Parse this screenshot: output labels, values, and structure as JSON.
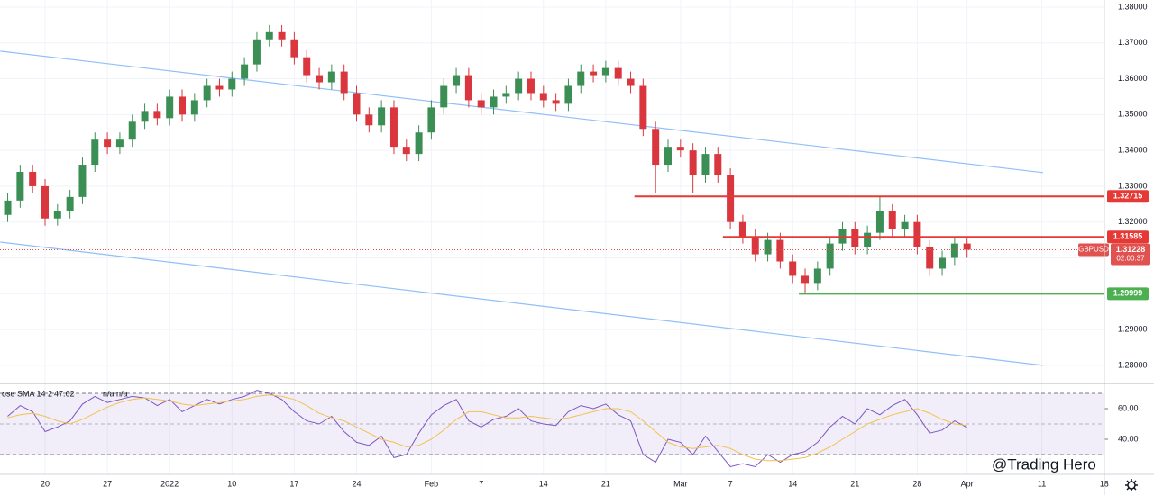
{
  "chart_data": {
    "type": "candlestick",
    "symbol": "GBPUSD",
    "categories": [
      null,
      null,
      null,
      "20",
      null,
      null,
      null,
      null,
      "27",
      null,
      null,
      null,
      null,
      "2022",
      null,
      null,
      null,
      null,
      "10",
      null,
      null,
      null,
      null,
      "17",
      null,
      null,
      null,
      null,
      "24",
      null,
      null,
      null,
      null,
      null,
      "Feb",
      null,
      null,
      null,
      "7",
      null,
      null,
      null,
      null,
      "14",
      null,
      null,
      null,
      null,
      "21",
      null,
      null,
      null,
      null,
      null,
      "Mar",
      null,
      null,
      null,
      "7",
      null,
      null,
      null,
      null,
      "14",
      null,
      null,
      null,
      null,
      "21",
      null,
      null,
      null,
      null,
      "28",
      null,
      null,
      null,
      "Apr",
      null,
      null,
      null,
      null,
      null,
      "11",
      null,
      null,
      null,
      null,
      "18"
    ],
    "open": [
      1.322,
      1.326,
      1.334,
      1.33,
      1.321,
      1.323,
      1.327,
      1.336,
      1.343,
      1.341,
      1.343,
      1.348,
      1.351,
      1.349,
      1.355,
      1.35,
      1.354,
      1.358,
      1.357,
      1.36,
      1.364,
      1.371,
      1.373,
      1.371,
      1.366,
      1.361,
      1.359,
      1.362,
      1.356,
      1.35,
      1.347,
      1.352,
      1.341,
      1.339,
      1.345,
      1.352,
      1.358,
      1.361,
      1.354,
      1.352,
      1.355,
      1.356,
      1.36,
      1.356,
      1.354,
      1.353,
      1.358,
      1.362,
      1.361,
      1.363,
      1.36,
      1.358,
      1.346,
      1.336,
      1.341,
      1.34,
      1.333,
      1.339,
      1.333,
      1.32,
      1.316,
      1.311,
      1.315,
      1.309,
      1.305,
      1.303,
      1.307,
      1.314,
      1.318,
      1.313,
      1.317,
      1.323,
      1.318,
      1.32,
      1.313,
      1.307,
      1.31,
      1.314,
      null,
      null,
      null,
      null,
      null,
      null,
      null,
      null,
      null,
      null,
      null
    ],
    "high": [
      1.328,
      1.336,
      1.336,
      1.332,
      1.325,
      1.329,
      1.338,
      1.345,
      1.345,
      1.345,
      1.35,
      1.353,
      1.353,
      1.357,
      1.357,
      1.356,
      1.36,
      1.36,
      1.362,
      1.366,
      1.373,
      1.375,
      1.375,
      1.373,
      1.368,
      1.363,
      1.364,
      1.364,
      1.358,
      1.352,
      1.354,
      1.354,
      1.343,
      1.347,
      1.354,
      1.36,
      1.363,
      1.363,
      1.356,
      1.357,
      1.358,
      1.362,
      1.362,
      1.358,
      1.356,
      1.36,
      1.364,
      1.364,
      1.365,
      1.365,
      1.362,
      1.36,
      1.348,
      1.343,
      1.343,
      1.342,
      1.341,
      1.341,
      1.335,
      1.322,
      1.318,
      1.317,
      1.317,
      1.311,
      1.307,
      1.309,
      1.316,
      1.32,
      1.32,
      1.319,
      1.327,
      1.325,
      1.322,
      1.322,
      1.315,
      1.312,
      1.316,
      1.316,
      null,
      null,
      null,
      null,
      null,
      null,
      null,
      null,
      null,
      null,
      null
    ],
    "low": [
      1.32,
      1.324,
      1.328,
      1.319,
      1.319,
      1.321,
      1.325,
      1.334,
      1.339,
      1.339,
      1.341,
      1.346,
      1.347,
      1.347,
      1.348,
      1.348,
      1.352,
      1.355,
      1.355,
      1.358,
      1.362,
      1.369,
      1.369,
      1.364,
      1.359,
      1.357,
      1.357,
      1.354,
      1.348,
      1.345,
      1.345,
      1.339,
      1.337,
      1.337,
      1.343,
      1.35,
      1.356,
      1.352,
      1.35,
      1.35,
      1.353,
      1.354,
      1.354,
      1.352,
      1.351,
      1.351,
      1.356,
      1.359,
      1.359,
      1.358,
      1.356,
      1.344,
      1.328,
      1.334,
      1.338,
      1.328,
      1.331,
      1.331,
      1.318,
      1.314,
      1.309,
      1.309,
      1.307,
      1.303,
      1.3,
      1.301,
      1.305,
      1.312,
      1.311,
      1.311,
      1.315,
      1.316,
      1.316,
      1.311,
      1.305,
      1.305,
      1.308,
      1.31,
      null,
      null,
      null,
      null,
      null,
      null,
      null,
      null,
      null,
      null,
      null
    ],
    "close": [
      1.326,
      1.334,
      1.33,
      1.321,
      1.323,
      1.327,
      1.336,
      1.343,
      1.341,
      1.343,
      1.348,
      1.351,
      1.349,
      1.355,
      1.35,
      1.354,
      1.358,
      1.357,
      1.36,
      1.364,
      1.371,
      1.373,
      1.371,
      1.366,
      1.361,
      1.359,
      1.362,
      1.356,
      1.35,
      1.347,
      1.352,
      1.341,
      1.339,
      1.345,
      1.352,
      1.358,
      1.361,
      1.354,
      1.352,
      1.355,
      1.356,
      1.36,
      1.356,
      1.354,
      1.353,
      1.358,
      1.362,
      1.361,
      1.363,
      1.36,
      1.358,
      1.346,
      1.336,
      1.341,
      1.34,
      1.333,
      1.339,
      1.333,
      1.32,
      1.316,
      1.311,
      1.315,
      1.309,
      1.305,
      1.303,
      1.307,
      1.314,
      1.318,
      1.313,
      1.317,
      1.323,
      1.318,
      1.32,
      1.313,
      1.307,
      1.31,
      1.314,
      1.31228,
      null,
      null,
      null,
      null,
      null,
      null,
      null,
      null,
      null,
      null,
      null
    ],
    "up_color": "#3b8f55",
    "down_color": "#d9363e",
    "ylim": [
      1.2752,
      1.382
    ],
    "yticks": [
      {
        "value": 1.28,
        "label": "1.28000"
      },
      {
        "value": 1.29,
        "label": "1.29000"
      },
      {
        "value": 1.3,
        "label": "1.30000"
      },
      {
        "value": 1.31,
        "label": "1.31000"
      },
      {
        "value": 1.32,
        "label": "1.32000"
      },
      {
        "value": 1.33,
        "label": "1.33000"
      },
      {
        "value": 1.34,
        "label": "1.34000"
      },
      {
        "value": 1.35,
        "label": "1.35000"
      },
      {
        "value": 1.36,
        "label": "1.36000"
      },
      {
        "value": 1.37,
        "label": "1.37000"
      },
      {
        "value": 1.38,
        "label": "1.38000"
      }
    ],
    "grid": true,
    "trendlines": [
      {
        "color": "#90bff9",
        "points": [
          [
            -0.6,
            1.3677
          ],
          [
            83.1,
            1.3338
          ]
        ]
      },
      {
        "color": "#90bff9",
        "points": [
          [
            -0.6,
            1.3144
          ],
          [
            83.1,
            1.28
          ]
        ]
      }
    ],
    "levels": [
      {
        "value": 1.32715,
        "from": 50.3,
        "color": "#e53935"
      },
      {
        "value": 1.31585,
        "from": 57.4,
        "color": "#e53935"
      },
      {
        "value": 1.29999,
        "from": 63.5,
        "color": "#4caf50"
      }
    ],
    "countdown": "02:00:37",
    "last_color": "#e0524f",
    "indicator": {
      "type": "line",
      "header": "ose SMA 14 2",
      "status": "n/a n/a",
      "ylim": [
        18.2,
        75.9
      ],
      "yticks": [
        {
          "value": 40,
          "label": "40.00"
        },
        {
          "value": 60,
          "label": "60.00"
        }
      ],
      "band": [
        30,
        70
      ],
      "midline": 50,
      "band_color": "#7e57c2",
      "series": [
        {
          "color": "#7e57c2",
          "values": [
            55,
            62,
            58,
            45,
            48,
            52,
            63,
            68,
            64,
            66,
            68,
            67,
            62,
            66,
            58,
            62,
            66,
            63,
            66,
            68,
            72,
            70,
            66,
            58,
            52,
            50,
            55,
            45,
            38,
            36,
            42,
            28,
            30,
            44,
            56,
            62,
            66,
            52,
            48,
            53,
            55,
            60,
            52,
            50,
            49,
            58,
            62,
            60,
            63,
            56,
            52,
            30,
            25,
            40,
            38,
            30,
            42,
            32,
            22,
            24,
            22,
            30,
            25,
            30,
            32,
            38,
            48,
            55,
            50,
            60,
            56,
            62,
            66,
            56,
            44,
            46,
            52,
            47.62,
            null,
            null,
            null,
            null,
            null,
            null,
            null,
            null,
            null,
            null,
            null
          ]
        },
        {
          "color": "#f2c14e",
          "values": [
            54,
            56,
            57,
            55,
            52,
            50,
            53,
            57,
            61,
            64,
            66,
            67,
            66,
            65,
            63,
            62,
            63,
            64,
            65,
            66,
            68,
            69,
            68,
            66,
            62,
            57,
            54,
            52,
            48,
            44,
            40,
            38,
            35,
            36,
            40,
            46,
            53,
            58,
            58,
            56,
            54,
            54,
            55,
            54,
            53,
            54,
            56,
            58,
            60,
            60,
            58,
            52,
            45,
            38,
            35,
            34,
            35,
            36,
            34,
            30,
            27,
            26,
            26,
            27,
            28,
            31,
            35,
            40,
            45,
            50,
            53,
            56,
            58,
            60,
            57,
            53,
            50,
            49,
            null,
            null,
            null,
            null,
            null,
            null,
            null,
            null,
            null,
            null,
            null
          ]
        }
      ]
    },
    "watermark": "@Trading Hero"
  }
}
